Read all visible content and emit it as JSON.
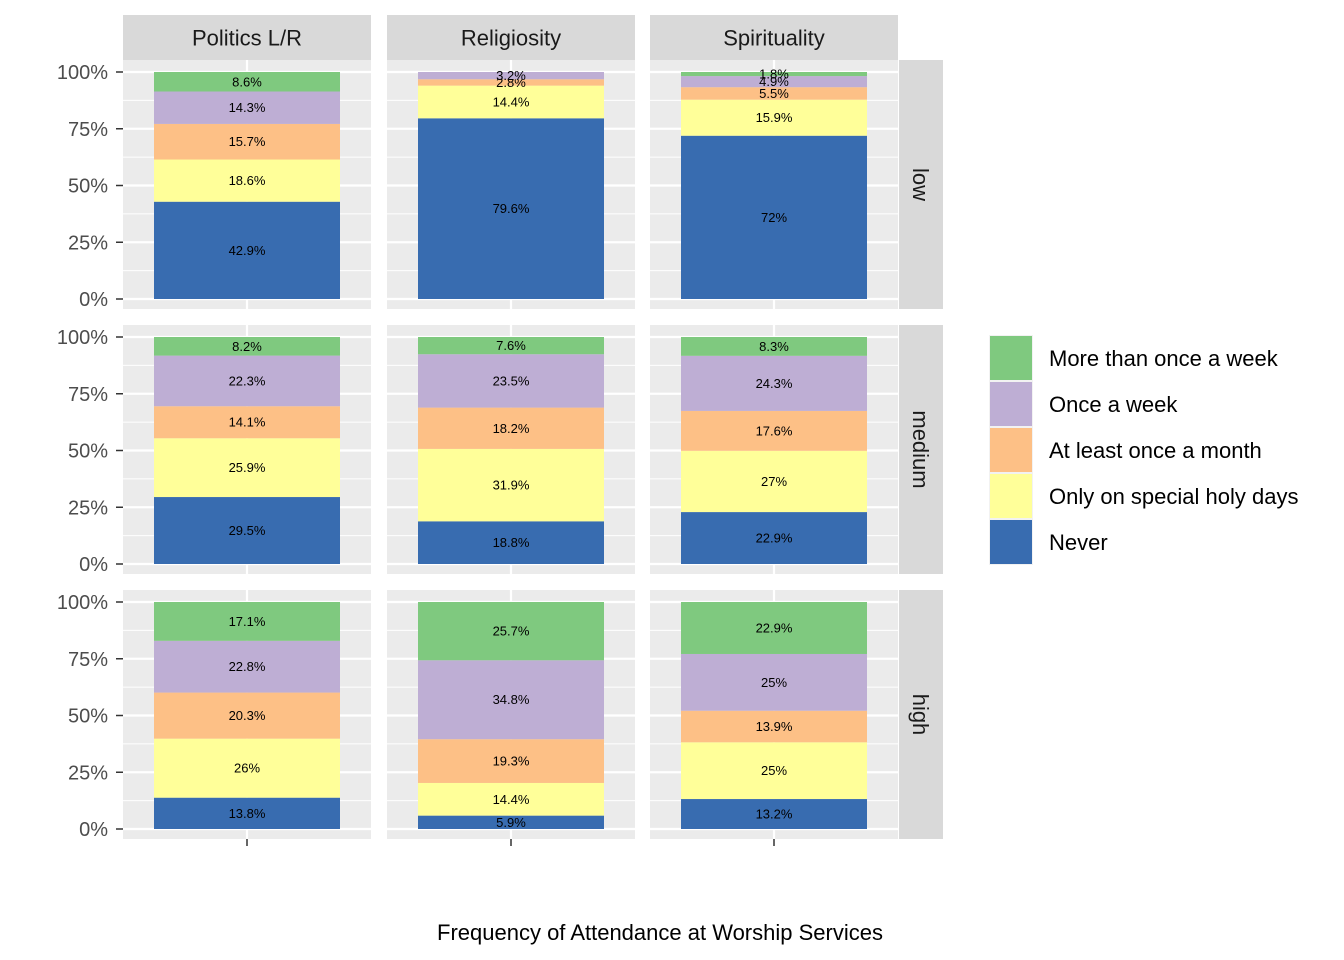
{
  "chart_data": {
    "type": "bar",
    "stacked": true,
    "normalized": true,
    "xlabel": "Frequency of Attendance at Worship Services",
    "ylabel": "",
    "ylim": [
      0,
      1
    ],
    "y_ticks": [
      "0%",
      "25%",
      "50%",
      "75%",
      "100%"
    ],
    "x_tick_labels": [
      "",
      "",
      ""
    ],
    "grid": true,
    "legend_position": "right",
    "columns": [
      "Politics L/R",
      "Religiosity",
      "Spirituality"
    ],
    "rows": [
      "low",
      "medium",
      "high"
    ],
    "series_order_bottom_to_top": [
      "Never",
      "Only on special holy days",
      "At least once a month",
      "Once a week",
      "More than once a week"
    ],
    "legend": [
      "More than once a week",
      "Once a week",
      "At least once a month",
      "Only on special holy days",
      "Never"
    ],
    "colors": {
      "More than once a week": "#7fc97f",
      "Once a week": "#beaed4",
      "At least once a month": "#fdc086",
      "Only on special holy days": "#ffff99",
      "Never": "#386cb0"
    },
    "panels": [
      {
        "column": "Politics L/R",
        "row": "low",
        "values": [
          42.9,
          18.6,
          15.7,
          14.3,
          8.6
        ],
        "labels": [
          "42.9%",
          "18.6%",
          "15.7%",
          "14.3%",
          "8.6%"
        ]
      },
      {
        "column": "Religiosity",
        "row": "low",
        "values": [
          79.6,
          14.4,
          2.8,
          3.2,
          0
        ],
        "labels": [
          "79.6%",
          "14.4%",
          "2.8%",
          "3.2%",
          ""
        ]
      },
      {
        "column": "Spirituality",
        "row": "low",
        "values": [
          72,
          15.9,
          5.5,
          4.9,
          1.8
        ],
        "labels": [
          "72%",
          "15.9%",
          "5.5%",
          "4.9%",
          "1.8%"
        ]
      },
      {
        "column": "Politics L/R",
        "row": "medium",
        "values": [
          29.5,
          25.9,
          14.1,
          22.3,
          8.2
        ],
        "labels": [
          "29.5%",
          "25.9%",
          "14.1%",
          "22.3%",
          "8.2%"
        ]
      },
      {
        "column": "Religiosity",
        "row": "medium",
        "values": [
          18.8,
          31.9,
          18.2,
          23.5,
          7.6
        ],
        "labels": [
          "18.8%",
          "31.9%",
          "18.2%",
          "23.5%",
          "7.6%"
        ]
      },
      {
        "column": "Spirituality",
        "row": "medium",
        "values": [
          22.9,
          27,
          17.6,
          24.3,
          8.3
        ],
        "labels": [
          "22.9%",
          "27%",
          "17.6%",
          "24.3%",
          "8.3%"
        ]
      },
      {
        "column": "Politics L/R",
        "row": "high",
        "values": [
          13.8,
          26,
          20.3,
          22.8,
          17.1
        ],
        "labels": [
          "13.8%",
          "26%",
          "20.3%",
          "22.8%",
          "17.1%"
        ]
      },
      {
        "column": "Religiosity",
        "row": "high",
        "values": [
          5.9,
          14.4,
          19.3,
          34.8,
          25.7
        ],
        "labels": [
          "5.9%",
          "14.4%",
          "19.3%",
          "34.8%",
          "25.7%"
        ]
      },
      {
        "column": "Spirituality",
        "row": "high",
        "values": [
          13.2,
          25,
          13.9,
          25,
          22.9
        ],
        "labels": [
          "13.2%",
          "25%",
          "13.9%",
          "25%",
          "22.9%"
        ]
      }
    ]
  }
}
